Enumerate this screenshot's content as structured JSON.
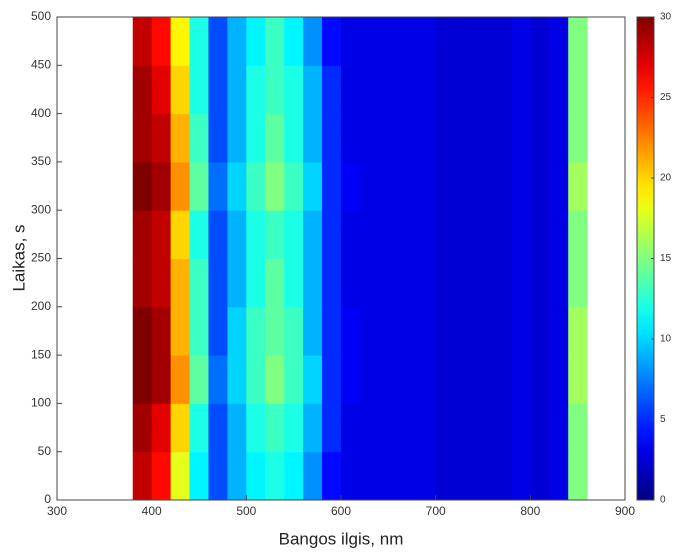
{
  "chart_data": {
    "type": "heatmap",
    "xlabel": "Bangos ilgis, nm",
    "ylabel": "Laikas, s",
    "x": [
      310,
      330,
      350,
      370,
      390,
      410,
      430,
      450,
      470,
      490,
      510,
      530,
      550,
      570,
      590,
      610,
      630,
      650,
      670,
      690,
      710,
      730,
      750,
      770,
      790,
      810,
      830,
      850,
      870,
      890
    ],
    "y": [
      25,
      75,
      125,
      175,
      225,
      275,
      325,
      375,
      425,
      475
    ],
    "z": [
      [
        null,
        null,
        null,
        null,
        28,
        26,
        18,
        11,
        6,
        9,
        11,
        12,
        11,
        8,
        4,
        3,
        3,
        3,
        3,
        3,
        2.5,
        2.5,
        2.5,
        2.5,
        3,
        2.5,
        3,
        15,
        null,
        null
      ],
      [
        null,
        null,
        null,
        null,
        29,
        27,
        20,
        12,
        6,
        9,
        12,
        13,
        12,
        9,
        5,
        3,
        3,
        3,
        3,
        3,
        2.5,
        2.5,
        2.5,
        2.5,
        3,
        2.5,
        3,
        15,
        null,
        null
      ],
      [
        null,
        null,
        null,
        null,
        30,
        29,
        22,
        14,
        7,
        10,
        13,
        15,
        13,
        10,
        5,
        3.5,
        3,
        3,
        3,
        3,
        2.5,
        2.5,
        2.5,
        2.5,
        3,
        2.5,
        3,
        16,
        null,
        null
      ],
      [
        null,
        null,
        null,
        null,
        30,
        29,
        21,
        13,
        6,
        10,
        13,
        14,
        13,
        9,
        5,
        3.5,
        3,
        3,
        3,
        3,
        2.5,
        2.5,
        2.5,
        2.5,
        3,
        2.5,
        3,
        16,
        null,
        null
      ],
      [
        null,
        null,
        null,
        null,
        29,
        28,
        21,
        13,
        6,
        9,
        12,
        14,
        12,
        9,
        5,
        3,
        3,
        3,
        3,
        3,
        2.5,
        2.5,
        2.5,
        2.5,
        3,
        2.5,
        3,
        15,
        null,
        null
      ],
      [
        null,
        null,
        null,
        null,
        29,
        28,
        20,
        12,
        6,
        9,
        12,
        13,
        12,
        9,
        5,
        3,
        3,
        3,
        3,
        3,
        2.5,
        2.5,
        2.5,
        2.5,
        3,
        2.5,
        3,
        15,
        null,
        null
      ],
      [
        null,
        null,
        null,
        null,
        30,
        29,
        22,
        14,
        7,
        10,
        13,
        15,
        13,
        10,
        5,
        3.5,
        3,
        3,
        3,
        3,
        2.5,
        2.5,
        2.5,
        2.5,
        3,
        2.5,
        3,
        16,
        null,
        null
      ],
      [
        null,
        null,
        null,
        null,
        29,
        28,
        21,
        13,
        6,
        9,
        12,
        14,
        12,
        9,
        5,
        3,
        3,
        3,
        3,
        3,
        2.5,
        2.5,
        2.5,
        2.5,
        3,
        2.5,
        3,
        15,
        null,
        null
      ],
      [
        null,
        null,
        null,
        null,
        29,
        27,
        20,
        12,
        6,
        9,
        12,
        13,
        12,
        9,
        5,
        3,
        3,
        3,
        3,
        3,
        2.5,
        2.5,
        2.5,
        2.5,
        3,
        2.5,
        3,
        15,
        null,
        null
      ],
      [
        null,
        null,
        null,
        null,
        28,
        26,
        19,
        12,
        6,
        9,
        11,
        13,
        11,
        8,
        4,
        3,
        3,
        3,
        3,
        3,
        2.5,
        2.5,
        2.5,
        2.5,
        3,
        2.5,
        3,
        15,
        null,
        null
      ]
    ],
    "xlim": [
      300,
      900
    ],
    "xticks": [
      300,
      400,
      500,
      600,
      700,
      800,
      900
    ],
    "ylim": [
      0,
      500
    ],
    "yticks": [
      0,
      50,
      100,
      150,
      200,
      250,
      300,
      350,
      400,
      450,
      500
    ],
    "clim": [
      0,
      30
    ],
    "cticks": [
      0,
      5,
      10,
      15,
      20,
      25,
      30
    ],
    "colormap": "jet"
  }
}
